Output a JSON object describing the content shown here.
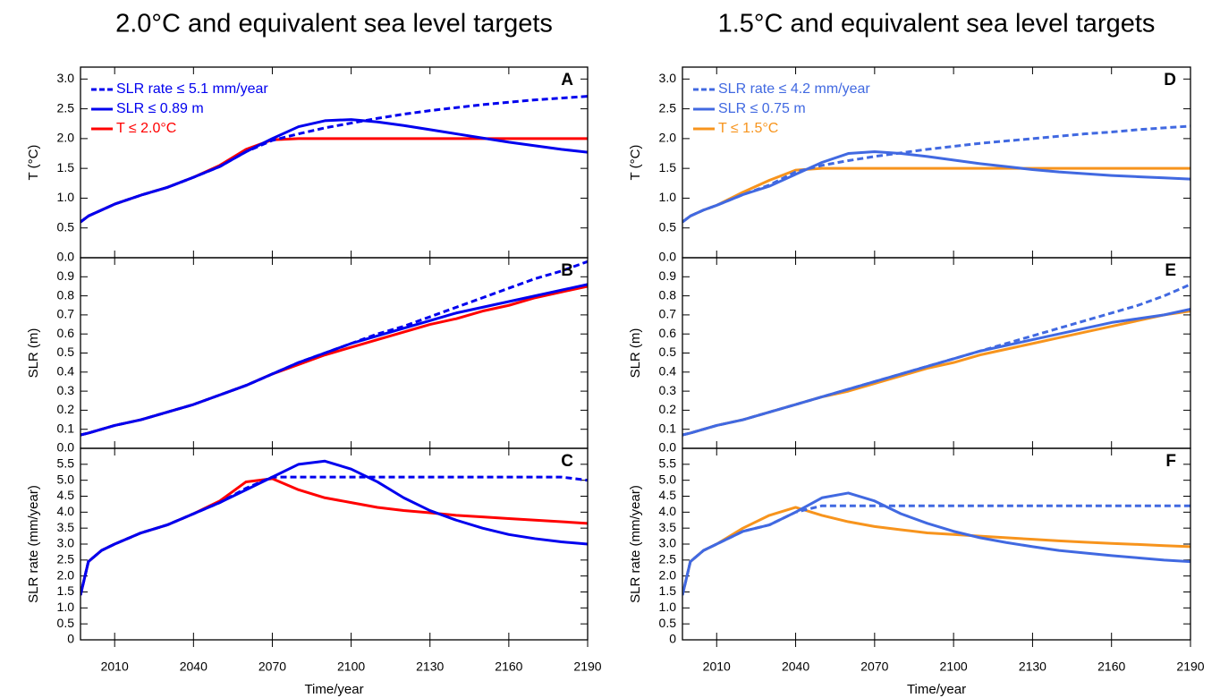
{
  "chart_data": [
    {
      "type": "line",
      "title": "2.0°C and equivalent sea level targets",
      "panel_label": "A",
      "y_label": "T (°C)",
      "x": [
        1997,
        2000,
        2005,
        2010,
        2020,
        2030,
        2040,
        2050,
        2060,
        2070,
        2080,
        2090,
        2100,
        2110,
        2120,
        2130,
        2140,
        2150,
        2160,
        2170,
        2180,
        2190
      ],
      "xlim": [
        1997,
        2190
      ],
      "xticks": [
        2010,
        2040,
        2070,
        2100,
        2130,
        2160,
        2190
      ],
      "show_xtick_labels": false,
      "ylim": [
        0,
        3.2
      ],
      "yticks": [
        {
          "value": 0,
          "label": "0.0"
        },
        0.5,
        {
          "value": 1,
          "label": "1.0"
        },
        1.5,
        {
          "value": 2,
          "label": "2.0"
        },
        2.5,
        {
          "value": 3,
          "label": "3.0"
        }
      ],
      "legend": "upper left",
      "series": [
        {
          "name": "SLR rate ≤ 5.1 mm/year",
          "color": "#0000ee",
          "dashed": true,
          "values": [
            0.6,
            0.7,
            0.8,
            0.9,
            1.05,
            1.18,
            1.35,
            1.53,
            1.78,
            1.97,
            2.08,
            2.18,
            2.26,
            2.34,
            2.41,
            2.47,
            2.52,
            2.57,
            2.61,
            2.65,
            2.68,
            2.71
          ]
        },
        {
          "name": "SLR ≤ 0.89 m",
          "color": "#0000ee",
          "dashed": false,
          "values": [
            0.6,
            0.7,
            0.8,
            0.9,
            1.05,
            1.18,
            1.35,
            1.53,
            1.78,
            2.0,
            2.2,
            2.3,
            2.32,
            2.28,
            2.22,
            2.15,
            2.08,
            2.01,
            1.94,
            1.88,
            1.82,
            1.77
          ]
        },
        {
          "name": "T ≤ 2.0°C",
          "color": "#ff0000",
          "dashed": false,
          "values": [
            0.6,
            0.7,
            0.8,
            0.9,
            1.05,
            1.18,
            1.35,
            1.55,
            1.82,
            1.98,
            2.0,
            2.0,
            2.0,
            2.0,
            2.0,
            2.0,
            2.0,
            2.0,
            2.0,
            2.0,
            2.0,
            2.0
          ]
        }
      ]
    },
    {
      "type": "line",
      "panel_label": "B",
      "y_label": "SLR (m)",
      "x": [
        1997,
        2000,
        2005,
        2010,
        2020,
        2030,
        2040,
        2050,
        2060,
        2070,
        2080,
        2090,
        2100,
        2110,
        2120,
        2130,
        2140,
        2150,
        2160,
        2170,
        2180,
        2190
      ],
      "xlim": [
        1997,
        2190
      ],
      "xticks": [
        2010,
        2040,
        2070,
        2100,
        2130,
        2160,
        2190
      ],
      "show_xtick_labels": false,
      "ylim": [
        0,
        1.0
      ],
      "yticks": [
        {
          "value": 0,
          "label": "0.0"
        },
        0.1,
        0.2,
        0.3,
        0.4,
        0.5,
        0.6,
        0.7,
        0.8,
        0.9
      ],
      "series": [
        {
          "color": "#0000ee",
          "dashed": true,
          "values": [
            0.07,
            0.08,
            0.1,
            0.12,
            0.15,
            0.19,
            0.23,
            0.28,
            0.33,
            0.39,
            0.45,
            0.5,
            0.55,
            0.6,
            0.64,
            0.69,
            0.74,
            0.79,
            0.84,
            0.89,
            0.93,
            0.98
          ]
        },
        {
          "color": "#0000ee",
          "dashed": false,
          "values": [
            0.07,
            0.08,
            0.1,
            0.12,
            0.15,
            0.19,
            0.23,
            0.28,
            0.33,
            0.39,
            0.45,
            0.5,
            0.55,
            0.59,
            0.63,
            0.67,
            0.71,
            0.74,
            0.77,
            0.8,
            0.83,
            0.86
          ]
        },
        {
          "color": "#ff0000",
          "dashed": false,
          "values": [
            0.07,
            0.08,
            0.1,
            0.12,
            0.15,
            0.19,
            0.23,
            0.28,
            0.33,
            0.39,
            0.44,
            0.49,
            0.53,
            0.57,
            0.61,
            0.65,
            0.68,
            0.72,
            0.75,
            0.79,
            0.82,
            0.85
          ]
        }
      ]
    },
    {
      "type": "line",
      "panel_label": "C",
      "y_label": "SLR rate (mm/year)",
      "x_label": "Time/year",
      "x": [
        1997,
        2000,
        2005,
        2010,
        2020,
        2030,
        2040,
        2050,
        2060,
        2070,
        2080,
        2090,
        2100,
        2110,
        2120,
        2130,
        2140,
        2150,
        2160,
        2170,
        2180,
        2190
      ],
      "xlim": [
        1997,
        2190
      ],
      "xticks": [
        2010,
        2040,
        2070,
        2100,
        2130,
        2160,
        2190
      ],
      "show_xtick_labels": true,
      "ylim": [
        0,
        6.0
      ],
      "yticks": [
        0,
        0.5,
        {
          "value": 1,
          "label": "1.0"
        },
        1.5,
        {
          "value": 2,
          "label": "2.0"
        },
        2.5,
        {
          "value": 3,
          "label": "3.0"
        },
        3.5,
        {
          "value": 4,
          "label": "4.0"
        },
        4.5,
        {
          "value": 5,
          "label": "5.0"
        },
        5.5
      ],
      "series": [
        {
          "color": "#0000ee",
          "dashed": true,
          "values": [
            1.4,
            2.45,
            2.8,
            3.0,
            3.35,
            3.6,
            3.95,
            4.3,
            4.75,
            5.1,
            5.1,
            5.1,
            5.1,
            5.1,
            5.1,
            5.1,
            5.1,
            5.1,
            5.1,
            5.1,
            5.1,
            5.0
          ]
        },
        {
          "color": "#0000ee",
          "dashed": false,
          "values": [
            1.4,
            2.45,
            2.8,
            3.0,
            3.35,
            3.6,
            3.95,
            4.3,
            4.7,
            5.1,
            5.5,
            5.6,
            5.35,
            4.95,
            4.45,
            4.05,
            3.75,
            3.5,
            3.3,
            3.17,
            3.07,
            3.0
          ]
        },
        {
          "color": "#ff0000",
          "dashed": false,
          "values": [
            1.4,
            2.45,
            2.8,
            3.0,
            3.35,
            3.6,
            3.95,
            4.35,
            4.95,
            5.05,
            4.7,
            4.45,
            4.3,
            4.15,
            4.05,
            3.98,
            3.9,
            3.85,
            3.8,
            3.75,
            3.7,
            3.65
          ]
        }
      ]
    },
    {
      "type": "line",
      "title": "1.5°C and equivalent sea level targets",
      "panel_label": "D",
      "y_label": "T (°C)",
      "x": [
        1997,
        2000,
        2005,
        2010,
        2020,
        2030,
        2040,
        2050,
        2060,
        2070,
        2080,
        2090,
        2100,
        2110,
        2120,
        2130,
        2140,
        2150,
        2160,
        2170,
        2180,
        2190
      ],
      "xlim": [
        1997,
        2190
      ],
      "xticks": [
        2010,
        2040,
        2070,
        2100,
        2130,
        2160,
        2190
      ],
      "show_xtick_labels": false,
      "ylim": [
        0,
        3.2
      ],
      "yticks": [
        {
          "value": 0,
          "label": "0.0"
        },
        0.5,
        {
          "value": 1,
          "label": "1.0"
        },
        1.5,
        {
          "value": 2,
          "label": "2.0"
        },
        2.5,
        {
          "value": 3,
          "label": "3.0"
        }
      ],
      "legend": "upper left",
      "series": [
        {
          "name": "SLR rate ≤ 4.2 mm/year",
          "color": "#4169e1",
          "dashed": true,
          "values": [
            0.6,
            0.7,
            0.8,
            0.88,
            1.06,
            1.22,
            1.44,
            1.55,
            1.63,
            1.7,
            1.76,
            1.82,
            1.87,
            1.92,
            1.96,
            2.0,
            2.04,
            2.08,
            2.11,
            2.15,
            2.18,
            2.21
          ]
        },
        {
          "name": "SLR ≤ 0.75 m",
          "color": "#4169e1",
          "dashed": false,
          "values": [
            0.6,
            0.7,
            0.8,
            0.88,
            1.06,
            1.2,
            1.4,
            1.6,
            1.75,
            1.78,
            1.75,
            1.7,
            1.64,
            1.58,
            1.53,
            1.48,
            1.44,
            1.41,
            1.38,
            1.36,
            1.34,
            1.32
          ]
        },
        {
          "name": "T ≤ 1.5°C",
          "color": "#f7941d",
          "dashed": false,
          "values": [
            0.6,
            0.7,
            0.8,
            0.88,
            1.1,
            1.3,
            1.47,
            1.5,
            1.5,
            1.5,
            1.5,
            1.5,
            1.5,
            1.5,
            1.5,
            1.5,
            1.5,
            1.5,
            1.5,
            1.5,
            1.5,
            1.5
          ]
        }
      ]
    },
    {
      "type": "line",
      "panel_label": "E",
      "y_label": "SLR (m)",
      "x": [
        1997,
        2000,
        2005,
        2010,
        2020,
        2030,
        2040,
        2050,
        2060,
        2070,
        2080,
        2090,
        2100,
        2110,
        2120,
        2130,
        2140,
        2150,
        2160,
        2170,
        2180,
        2190
      ],
      "xlim": [
        1997,
        2190
      ],
      "xticks": [
        2010,
        2040,
        2070,
        2100,
        2130,
        2160,
        2190
      ],
      "show_xtick_labels": false,
      "ylim": [
        0,
        1.0
      ],
      "yticks": [
        {
          "value": 0,
          "label": "0.0"
        },
        0.1,
        0.2,
        0.3,
        0.4,
        0.5,
        0.6,
        0.7,
        0.8,
        0.9
      ],
      "series": [
        {
          "color": "#4169e1",
          "dashed": true,
          "values": [
            0.07,
            0.08,
            0.1,
            0.12,
            0.15,
            0.19,
            0.23,
            0.27,
            0.31,
            0.35,
            0.39,
            0.43,
            0.47,
            0.51,
            0.55,
            0.59,
            0.63,
            0.67,
            0.71,
            0.75,
            0.8,
            0.86
          ]
        },
        {
          "color": "#4169e1",
          "dashed": false,
          "values": [
            0.07,
            0.08,
            0.1,
            0.12,
            0.15,
            0.19,
            0.23,
            0.27,
            0.31,
            0.35,
            0.39,
            0.43,
            0.47,
            0.51,
            0.54,
            0.57,
            0.6,
            0.63,
            0.66,
            0.68,
            0.7,
            0.73
          ]
        },
        {
          "color": "#f7941d",
          "dashed": false,
          "values": [
            0.07,
            0.08,
            0.1,
            0.12,
            0.15,
            0.19,
            0.23,
            0.27,
            0.3,
            0.34,
            0.38,
            0.42,
            0.45,
            0.49,
            0.52,
            0.55,
            0.58,
            0.61,
            0.64,
            0.67,
            0.7,
            0.72
          ]
        }
      ]
    },
    {
      "type": "line",
      "panel_label": "F",
      "y_label": "SLR rate (mm/year)",
      "x_label": "Time/year",
      "x": [
        1997,
        2000,
        2005,
        2010,
        2020,
        2030,
        2040,
        2050,
        2060,
        2070,
        2080,
        2090,
        2100,
        2110,
        2120,
        2130,
        2140,
        2150,
        2160,
        2170,
        2180,
        2190
      ],
      "xlim": [
        1997,
        2190
      ],
      "xticks": [
        2010,
        2040,
        2070,
        2100,
        2130,
        2160,
        2190
      ],
      "show_xtick_labels": true,
      "ylim": [
        0,
        6.0
      ],
      "yticks": [
        0,
        0.5,
        {
          "value": 1,
          "label": "1.0"
        },
        1.5,
        {
          "value": 2,
          "label": "2.0"
        },
        2.5,
        {
          "value": 3,
          "label": "3.0"
        },
        3.5,
        {
          "value": 4,
          "label": "4.0"
        },
        4.5,
        {
          "value": 5,
          "label": "5.0"
        },
        5.5
      ],
      "series": [
        {
          "color": "#4169e1",
          "dashed": true,
          "values": [
            1.4,
            2.45,
            2.8,
            3.0,
            3.4,
            3.6,
            4.0,
            4.2,
            4.2,
            4.2,
            4.2,
            4.2,
            4.2,
            4.2,
            4.2,
            4.2,
            4.2,
            4.2,
            4.2,
            4.2,
            4.2,
            4.2
          ]
        },
        {
          "color": "#4169e1",
          "dashed": false,
          "values": [
            1.4,
            2.45,
            2.8,
            3.0,
            3.4,
            3.6,
            4.0,
            4.45,
            4.6,
            4.35,
            3.95,
            3.65,
            3.4,
            3.2,
            3.05,
            2.92,
            2.8,
            2.72,
            2.64,
            2.57,
            2.5,
            2.45
          ]
        },
        {
          "color": "#f7941d",
          "dashed": false,
          "values": [
            1.4,
            2.45,
            2.8,
            3.0,
            3.5,
            3.9,
            4.15,
            3.9,
            3.7,
            3.55,
            3.45,
            3.35,
            3.3,
            3.25,
            3.2,
            3.15,
            3.1,
            3.06,
            3.02,
            2.99,
            2.95,
            2.92
          ]
        }
      ]
    }
  ]
}
